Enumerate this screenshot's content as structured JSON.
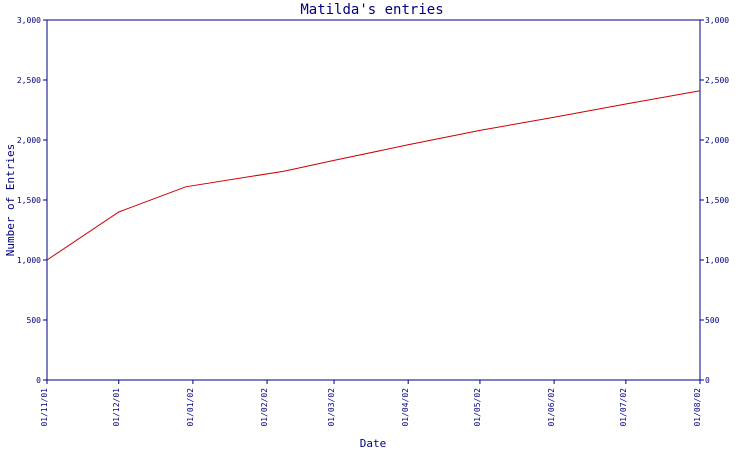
{
  "chart_data": {
    "type": "line",
    "title": "Matilda's entries",
    "xlabel": "Date",
    "ylabel": "Number of Entries",
    "x_ticks": [
      "01/11/01",
      "01/12/01",
      "01/01/02",
      "01/02/02",
      "01/03/02",
      "01/04/02",
      "01/05/02",
      "01/06/02",
      "01/07/02",
      "01/08/02"
    ],
    "y_ticks": [
      "0",
      "500",
      "1,000",
      "1,500",
      "2,000",
      "2,500",
      "3,000"
    ],
    "y_ticks_right": [
      "0",
      "500",
      "1,000",
      "1,500",
      "2,000",
      "2,500",
      "3,000"
    ],
    "ylim": [
      0,
      3000
    ],
    "xlim": [
      "2001-11-01",
      "2002-08-01"
    ],
    "grid": false,
    "series": [
      {
        "x": [
          "2001-11-01",
          "2001-12-01",
          "2001-12-29",
          "2002-02-08",
          "2002-03-01",
          "2002-04-01",
          "2002-05-01",
          "2002-06-01",
          "2002-07-01",
          "2002-08-01"
        ],
        "y": [
          1000,
          1400,
          1610,
          1740,
          1830,
          1960,
          2080,
          2190,
          2300,
          2410
        ]
      }
    ],
    "colors": {
      "axis": "#000080",
      "line": "#cc0000",
      "text": "#000080"
    }
  }
}
